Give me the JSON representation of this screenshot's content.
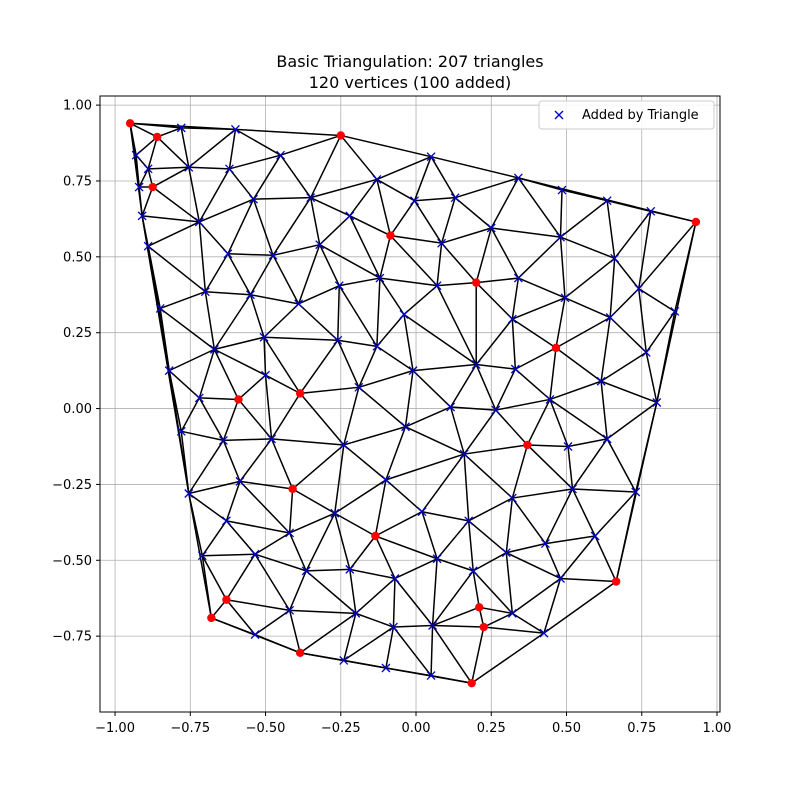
{
  "chart_data": {
    "type": "scatter",
    "title": "Basic Triangulation: 207 triangles",
    "subtitle": "120 vertices (100 added)",
    "xlabel": "",
    "ylabel": "",
    "xlim": [
      -1.05,
      1.01
    ],
    "ylim": [
      -1.0,
      1.03
    ],
    "x_ticks": [
      -1.0,
      -0.75,
      -0.5,
      -0.25,
      0.0,
      0.25,
      0.5,
      0.75,
      1.0
    ],
    "x_tick_labels": [
      "−1.00",
      "−0.75",
      "−0.50",
      "−0.25",
      "0.00",
      "0.25",
      "0.50",
      "0.75",
      "1.00"
    ],
    "y_ticks": [
      -0.75,
      -0.5,
      -0.25,
      0.0,
      0.25,
      0.5,
      0.75,
      1.0
    ],
    "y_tick_labels": [
      "−0.75",
      "−0.50",
      "−0.25",
      "0.00",
      "0.25",
      "0.50",
      "0.75",
      "1.00"
    ],
    "grid": true,
    "legend_placement": "top-right",
    "colors": {
      "original": "#ff0000",
      "added": "#0000cc",
      "edges": "#000000",
      "grid": "#b0b0b0"
    },
    "series": [
      {
        "name": "",
        "marker": "circle",
        "points": [
          [
            -0.95,
            0.94
          ],
          [
            -0.86,
            0.895
          ],
          [
            -0.875,
            0.73
          ],
          [
            -0.25,
            0.9
          ],
          [
            -0.085,
            0.57
          ],
          [
            0.2,
            0.415
          ],
          [
            0.465,
            0.2
          ],
          [
            0.93,
            0.615
          ],
          [
            -0.59,
            0.03
          ],
          [
            -0.385,
            0.05
          ],
          [
            0.37,
            -0.12
          ],
          [
            -0.41,
            -0.265
          ],
          [
            -0.135,
            -0.42
          ],
          [
            -0.63,
            -0.63
          ],
          [
            -0.68,
            -0.69
          ],
          [
            0.21,
            -0.655
          ],
          [
            0.225,
            -0.72
          ],
          [
            -0.385,
            -0.805
          ],
          [
            0.185,
            -0.905
          ],
          [
            0.665,
            -0.57
          ]
        ]
      },
      {
        "name": "Added by Triangle",
        "marker": "x",
        "points": [
          [
            -0.93,
            0.835
          ],
          [
            -0.89,
            0.79
          ],
          [
            -0.92,
            0.73
          ],
          [
            -0.78,
            0.925
          ],
          [
            -0.6,
            0.92
          ],
          [
            -0.45,
            0.835
          ],
          [
            -0.755,
            0.795
          ],
          [
            -0.62,
            0.79
          ],
          [
            -0.91,
            0.635
          ],
          [
            -0.89,
            0.535
          ],
          [
            -0.72,
            0.615
          ],
          [
            -0.54,
            0.69
          ],
          [
            -0.35,
            0.695
          ],
          [
            -0.625,
            0.51
          ],
          [
            -0.475,
            0.505
          ],
          [
            -0.32,
            0.54
          ],
          [
            -0.22,
            0.635
          ],
          [
            -0.13,
            0.755
          ],
          [
            -0.005,
            0.685
          ],
          [
            0.05,
            0.83
          ],
          [
            0.13,
            0.695
          ],
          [
            0.25,
            0.595
          ],
          [
            0.085,
            0.545
          ],
          [
            0.34,
            0.76
          ],
          [
            0.485,
            0.72
          ],
          [
            0.48,
            0.565
          ],
          [
            0.635,
            0.685
          ],
          [
            0.78,
            0.65
          ],
          [
            0.66,
            0.495
          ],
          [
            0.74,
            0.395
          ],
          [
            0.86,
            0.32
          ],
          [
            0.495,
            0.365
          ],
          [
            0.34,
            0.43
          ],
          [
            0.07,
            0.405
          ],
          [
            -0.12,
            0.43
          ],
          [
            -0.04,
            0.31
          ],
          [
            -0.255,
            0.405
          ],
          [
            -0.39,
            0.345
          ],
          [
            -0.55,
            0.375
          ],
          [
            -0.7,
            0.385
          ],
          [
            -0.85,
            0.33
          ],
          [
            -0.67,
            0.195
          ],
          [
            -0.505,
            0.235
          ],
          [
            -0.26,
            0.225
          ],
          [
            -0.13,
            0.205
          ],
          [
            0.32,
            0.295
          ],
          [
            0.645,
            0.3
          ],
          [
            0.765,
            0.185
          ],
          [
            0.2,
            0.145
          ],
          [
            0.33,
            0.13
          ],
          [
            0.615,
            0.09
          ],
          [
            0.8,
            0.02
          ],
          [
            -0.82,
            0.125
          ],
          [
            -0.72,
            0.035
          ],
          [
            -0.5,
            0.11
          ],
          [
            -0.19,
            0.07
          ],
          [
            -0.01,
            0.125
          ],
          [
            0.115,
            0.005
          ],
          [
            0.265,
            -0.005
          ],
          [
            0.445,
            0.03
          ],
          [
            -0.78,
            -0.075
          ],
          [
            -0.64,
            -0.105
          ],
          [
            -0.48,
            -0.1
          ],
          [
            -0.24,
            -0.12
          ],
          [
            -0.035,
            -0.06
          ],
          [
            0.505,
            -0.125
          ],
          [
            0.635,
            -0.1
          ],
          [
            0.16,
            -0.15
          ],
          [
            -0.585,
            -0.24
          ],
          [
            -0.755,
            -0.28
          ],
          [
            -0.1,
            -0.235
          ],
          [
            0.32,
            -0.295
          ],
          [
            0.52,
            -0.265
          ],
          [
            0.73,
            -0.275
          ],
          [
            -0.63,
            -0.37
          ],
          [
            -0.42,
            -0.41
          ],
          [
            -0.27,
            -0.345
          ],
          [
            0.02,
            -0.34
          ],
          [
            0.175,
            -0.37
          ],
          [
            -0.71,
            -0.485
          ],
          [
            -0.535,
            -0.48
          ],
          [
            -0.365,
            -0.535
          ],
          [
            -0.22,
            -0.53
          ],
          [
            0.07,
            -0.495
          ],
          [
            0.3,
            -0.475
          ],
          [
            0.43,
            -0.445
          ],
          [
            0.595,
            -0.42
          ],
          [
            -0.07,
            -0.56
          ],
          [
            0.19,
            -0.535
          ],
          [
            0.48,
            -0.56
          ],
          [
            -0.42,
            -0.665
          ],
          [
            -0.2,
            -0.675
          ],
          [
            -0.075,
            -0.72
          ],
          [
            0.055,
            -0.715
          ],
          [
            0.32,
            -0.675
          ],
          [
            -0.535,
            -0.745
          ],
          [
            0.425,
            -0.74
          ],
          [
            -0.24,
            -0.83
          ],
          [
            -0.1,
            -0.855
          ],
          [
            0.05,
            -0.88
          ]
        ]
      }
    ]
  }
}
